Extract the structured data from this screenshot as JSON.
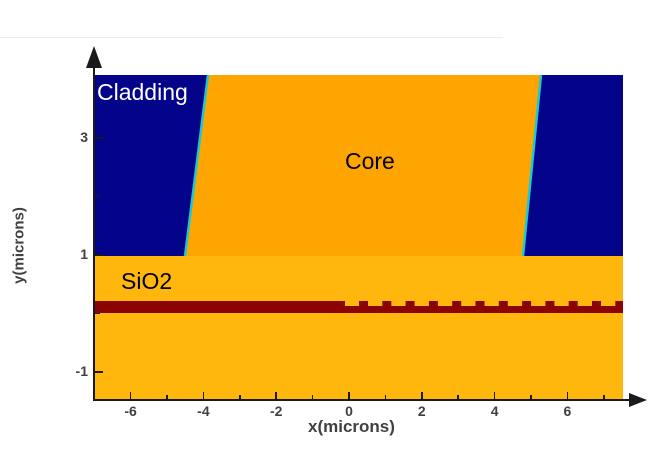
{
  "figure": {
    "region_labels": {
      "cladding": "Cladding",
      "core": "Core",
      "substrate": "SiO2"
    },
    "x_axis": {
      "label": "x(microns)",
      "major_ticks": [
        -6,
        -4,
        -2,
        0,
        2,
        4,
        6
      ],
      "minor_ticks": [
        -5,
        -3,
        -1,
        1,
        3,
        5,
        7
      ],
      "range": [
        -7,
        7.5
      ]
    },
    "y_axis": {
      "label": "y(microns)",
      "major_ticks": [
        3,
        1,
        -1
      ],
      "minor_ticks": [
        2,
        0
      ],
      "range": [
        -1.5,
        4.1
      ]
    },
    "colors": {
      "cladding": "#04048a",
      "core": "#ffa502",
      "substrate": "#ffb60d",
      "grating_layer": "#8b0404",
      "sidewall_highlight": "#1bc9ce",
      "axis": "#1a1a1a",
      "tick_label": "#404040"
    },
    "structure": {
      "core_region": "trapezoidal ridge with slanted sidewalls, y from 1 to top of plot, x from -4.5 to 4.8 microns at base",
      "cladding_region": "dark blue regions left and right of the core, y above 1 micron",
      "substrate_region": "SiO2 slab filling the plot below y = 1 micron",
      "grating_layer": "thin dark-red layer at y from 0 to 0.2 microns; solid slab for x < 0, periodic grating teeth for x > 0 with period of about 0.64 microns"
    }
  }
}
